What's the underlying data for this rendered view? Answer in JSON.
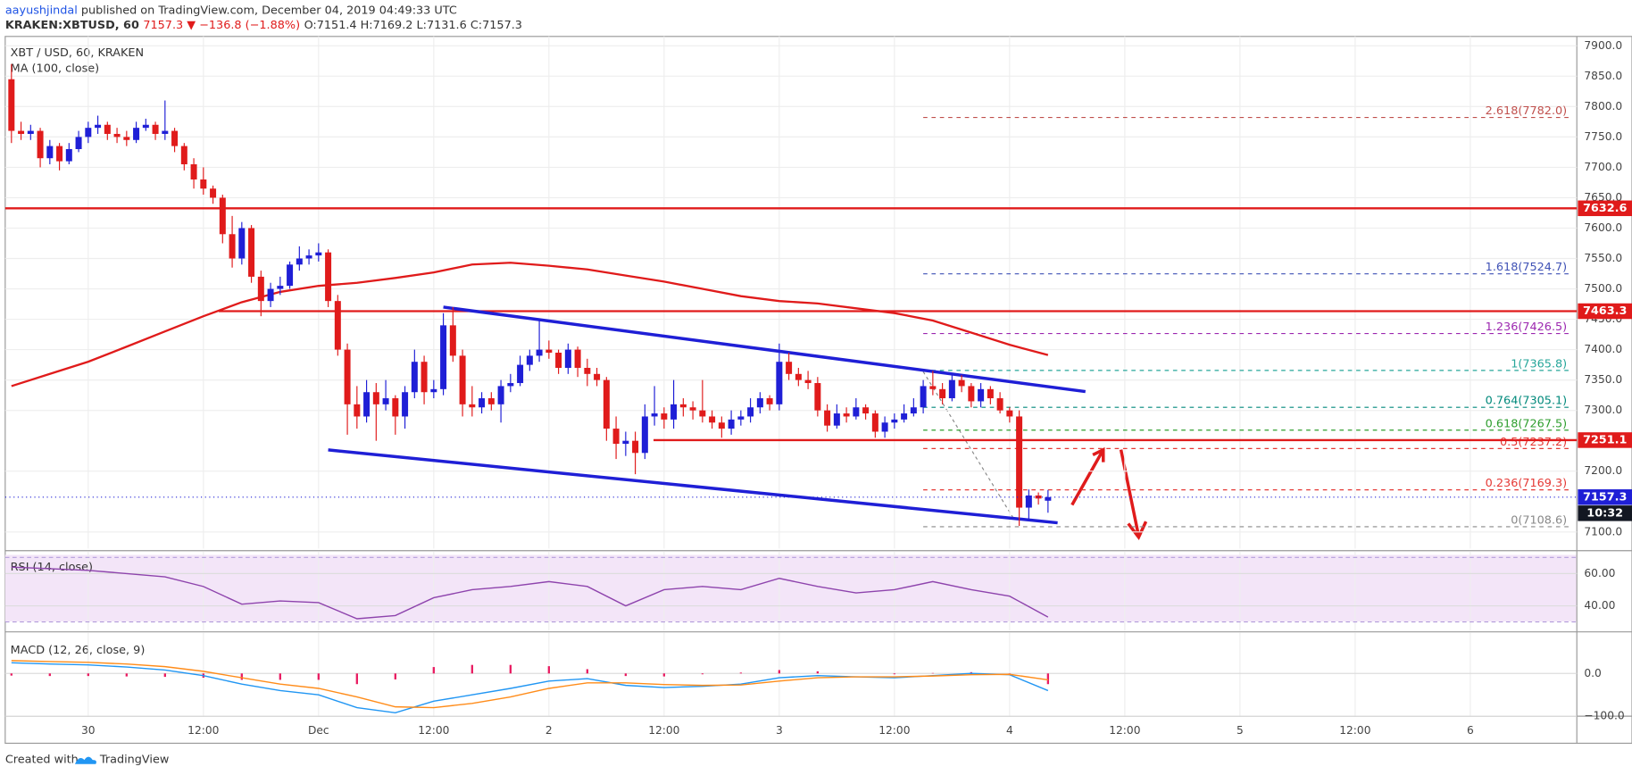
{
  "header": {
    "author": "aayushjindal",
    "published": "published on TradingView.com, December 04, 2019 04:49:33 UTC",
    "symbol": "KRAKEN:XBTUSD, 60",
    "change": "7157.3 ▼ −136.8 (−1.88%)",
    "ohlc_text": "O:7151.4 H:7169.2 L:7131.6 C:7157.3"
  },
  "footer": {
    "created": "Created with",
    "brand": "TradingView"
  },
  "chart_data": {
    "type": "candlestick",
    "title": "XBT / USD, 60, KRAKEN",
    "up_color": "#1f1fd6",
    "down_color": "#e01b1b",
    "xlim": [
      -0.65,
      163.1
    ],
    "xticks": [
      {
        "value": 8,
        "label": "30"
      },
      {
        "value": 20,
        "label": "12:00"
      },
      {
        "value": 32,
        "label": "Dec"
      },
      {
        "value": 44,
        "label": "12:00"
      },
      {
        "value": 56,
        "label": "2"
      },
      {
        "value": 68,
        "label": "12:00"
      },
      {
        "value": 80,
        "label": "3"
      },
      {
        "value": 92,
        "label": "12:00"
      },
      {
        "value": 104,
        "label": "4"
      },
      {
        "value": 116,
        "label": "12:00"
      },
      {
        "value": 128,
        "label": "5"
      },
      {
        "value": 140,
        "label": "12:00"
      },
      {
        "value": 152,
        "label": "6"
      }
    ],
    "ylim": [
      7072.6,
      7915.4
    ],
    "yticks": [
      {
        "value": 7900,
        "label": "7900.0"
      },
      {
        "value": 7850,
        "label": "7850.0"
      },
      {
        "value": 7800,
        "label": "7800.0"
      },
      {
        "value": 7750,
        "label": "7750.0"
      },
      {
        "value": 7700,
        "label": "7700.0"
      },
      {
        "value": 7650,
        "label": "7650.0"
      },
      {
        "value": 7600,
        "label": "7600.0"
      },
      {
        "value": 7550,
        "label": "7550.0"
      },
      {
        "value": 7500,
        "label": "7500.0"
      },
      {
        "value": 7450,
        "label": "7450.0"
      },
      {
        "value": 7400,
        "label": "7400.0"
      },
      {
        "value": 7350,
        "label": "7350.0"
      },
      {
        "value": 7300,
        "label": "7300.0"
      },
      {
        "value": 7200,
        "label": "7200.0"
      },
      {
        "value": 7100,
        "label": "7100.0"
      }
    ],
    "grid": true,
    "ohlc": [
      [
        7845,
        7870,
        7740,
        7760
      ],
      [
        7760,
        7775,
        7745,
        7755
      ],
      [
        7755,
        7770,
        7745,
        7760
      ],
      [
        7760,
        7765,
        7700,
        7715
      ],
      [
        7715,
        7745,
        7705,
        7735
      ],
      [
        7735,
        7740,
        7695,
        7710
      ],
      [
        7710,
        7740,
        7705,
        7730
      ],
      [
        7730,
        7760,
        7725,
        7750
      ],
      [
        7750,
        7775,
        7740,
        7765
      ],
      [
        7765,
        7785,
        7755,
        7770
      ],
      [
        7770,
        7775,
        7745,
        7755
      ],
      [
        7755,
        7765,
        7740,
        7750
      ],
      [
        7750,
        7760,
        7735,
        7745
      ],
      [
        7745,
        7775,
        7740,
        7765
      ],
      [
        7765,
        7780,
        7760,
        7770
      ],
      [
        7770,
        7775,
        7745,
        7755
      ],
      [
        7755,
        7810,
        7745,
        7760
      ],
      [
        7760,
        7765,
        7725,
        7735
      ],
      [
        7735,
        7740,
        7695,
        7705
      ],
      [
        7705,
        7715,
        7665,
        7680
      ],
      [
        7680,
        7700,
        7655,
        7665
      ],
      [
        7665,
        7670,
        7640,
        7650
      ],
      [
        7650,
        7655,
        7575,
        7590
      ],
      [
        7590,
        7620,
        7535,
        7550
      ],
      [
        7550,
        7610,
        7540,
        7600
      ],
      [
        7600,
        7605,
        7510,
        7520
      ],
      [
        7520,
        7530,
        7455,
        7480
      ],
      [
        7480,
        7510,
        7470,
        7500
      ],
      [
        7500,
        7520,
        7490,
        7505
      ],
      [
        7505,
        7545,
        7500,
        7540
      ],
      [
        7540,
        7570,
        7530,
        7550
      ],
      [
        7550,
        7565,
        7540,
        7555
      ],
      [
        7555,
        7575,
        7545,
        7560
      ],
      [
        7560,
        7565,
        7470,
        7480
      ],
      [
        7480,
        7490,
        7390,
        7400
      ],
      [
        7400,
        7410,
        7260,
        7310
      ],
      [
        7310,
        7340,
        7270,
        7290
      ],
      [
        7290,
        7350,
        7280,
        7330
      ],
      [
        7330,
        7345,
        7250,
        7310
      ],
      [
        7310,
        7350,
        7300,
        7320
      ],
      [
        7320,
        7325,
        7260,
        7290
      ],
      [
        7290,
        7340,
        7270,
        7330
      ],
      [
        7330,
        7400,
        7320,
        7380
      ],
      [
        7380,
        7390,
        7310,
        7330
      ],
      [
        7330,
        7350,
        7320,
        7335
      ],
      [
        7335,
        7460,
        7325,
        7440
      ],
      [
        7440,
        7470,
        7380,
        7390
      ],
      [
        7390,
        7400,
        7290,
        7310
      ],
      [
        7310,
        7340,
        7290,
        7305
      ],
      [
        7305,
        7330,
        7295,
        7320
      ],
      [
        7320,
        7330,
        7300,
        7310
      ],
      [
        7310,
        7350,
        7280,
        7340
      ],
      [
        7340,
        7360,
        7330,
        7345
      ],
      [
        7345,
        7390,
        7340,
        7375
      ],
      [
        7375,
        7400,
        7365,
        7390
      ],
      [
        7390,
        7450,
        7380,
        7400
      ],
      [
        7400,
        7415,
        7385,
        7395
      ],
      [
        7395,
        7400,
        7360,
        7370
      ],
      [
        7370,
        7410,
        7360,
        7400
      ],
      [
        7400,
        7405,
        7355,
        7370
      ],
      [
        7370,
        7385,
        7340,
        7360
      ],
      [
        7360,
        7370,
        7340,
        7350
      ],
      [
        7350,
        7355,
        7250,
        7270
      ],
      [
        7270,
        7290,
        7220,
        7245
      ],
      [
        7245,
        7265,
        7225,
        7250
      ],
      [
        7250,
        7265,
        7195,
        7230
      ],
      [
        7230,
        7310,
        7220,
        7290
      ],
      [
        7290,
        7340,
        7275,
        7295
      ],
      [
        7295,
        7305,
        7270,
        7285
      ],
      [
        7285,
        7350,
        7270,
        7310
      ],
      [
        7310,
        7320,
        7290,
        7305
      ],
      [
        7305,
        7315,
        7285,
        7300
      ],
      [
        7300,
        7350,
        7280,
        7290
      ],
      [
        7290,
        7300,
        7270,
        7280
      ],
      [
        7280,
        7290,
        7255,
        7270
      ],
      [
        7270,
        7300,
        7260,
        7285
      ],
      [
        7285,
        7300,
        7275,
        7290
      ],
      [
        7290,
        7320,
        7280,
        7305
      ],
      [
        7305,
        7330,
        7295,
        7320
      ],
      [
        7320,
        7325,
        7300,
        7310
      ],
      [
        7310,
        7410,
        7300,
        7380
      ],
      [
        7380,
        7395,
        7350,
        7360
      ],
      [
        7360,
        7370,
        7340,
        7350
      ],
      [
        7350,
        7365,
        7335,
        7345
      ],
      [
        7345,
        7355,
        7290,
        7300
      ],
      [
        7300,
        7310,
        7265,
        7275
      ],
      [
        7275,
        7310,
        7270,
        7295
      ],
      [
        7295,
        7305,
        7280,
        7290
      ],
      [
        7290,
        7320,
        7285,
        7305
      ],
      [
        7305,
        7310,
        7285,
        7295
      ],
      [
        7295,
        7300,
        7255,
        7265
      ],
      [
        7265,
        7290,
        7255,
        7280
      ],
      [
        7280,
        7295,
        7270,
        7285
      ],
      [
        7285,
        7310,
        7280,
        7295
      ],
      [
        7295,
        7320,
        7290,
        7305
      ],
      [
        7305,
        7350,
        7295,
        7340
      ],
      [
        7340,
        7365,
        7325,
        7335
      ],
      [
        7335,
        7345,
        7310,
        7320
      ],
      [
        7320,
        7360,
        7315,
        7350
      ],
      [
        7350,
        7358,
        7330,
        7340
      ],
      [
        7340,
        7345,
        7305,
        7315
      ],
      [
        7315,
        7345,
        7305,
        7335
      ],
      [
        7335,
        7340,
        7310,
        7320
      ],
      [
        7320,
        7330,
        7295,
        7300
      ],
      [
        7300,
        7305,
        7280,
        7290
      ],
      [
        7290,
        7300,
        7110,
        7140
      ],
      [
        7140,
        7170,
        7120,
        7160
      ],
      [
        7160,
        7165,
        7145,
        7155
      ],
      [
        7151.4,
        7169.2,
        7131.6,
        7157.3
      ]
    ],
    "ma": {
      "name": "MA (100, close)",
      "color": "#e01b1b",
      "x": [
        0,
        4,
        8,
        12,
        16,
        20,
        24,
        28,
        32,
        36,
        40,
        44,
        48,
        52,
        56,
        60,
        64,
        68,
        72,
        76,
        80,
        84,
        88,
        92,
        96,
        100,
        104,
        108
      ],
      "values": [
        7340,
        7360,
        7380,
        7405,
        7430,
        7455,
        7478,
        7495,
        7505,
        7510,
        7518,
        7527,
        7540,
        7543,
        7538,
        7532,
        7522,
        7512,
        7500,
        7488,
        7480,
        7476,
        7468,
        7460,
        7448,
        7428,
        7408,
        7391
      ]
    },
    "levels": [
      {
        "value": 7632.6,
        "color": "#e01b1b"
      },
      {
        "value": 7463.3,
        "start": 21.6,
        "color": "#e01b1b"
      },
      {
        "value": 7251.1,
        "start": 66.9,
        "color": "#e01b1b"
      }
    ],
    "last_price": {
      "value": 7157.3,
      "countdown": "10:32",
      "color": "#1f1fd6"
    },
    "trendlines": [
      {
        "x": [
          45.0,
          111.9
        ],
        "values": [
          7470,
          7331
        ],
        "color": "#1f1fd6"
      },
      {
        "x": [
          33.0,
          109.0
        ],
        "values": [
          7235,
          7115
        ],
        "color": "#1f1fd6"
      }
    ],
    "fib_x": [
      95,
      162.4
    ],
    "fib": [
      {
        "label": "2.618(7782.0)",
        "value": 7782.0,
        "color": "#c0504d"
      },
      {
        "label": "1.618(7524.7)",
        "value": 7524.7,
        "color": "#3f51b5"
      },
      {
        "label": "1.236(7426.5)",
        "value": 7426.5,
        "color": "#9c27b0"
      },
      {
        "label": "1(7365.8)",
        "value": 7365.8,
        "color": "#26a69a"
      },
      {
        "label": "0.764(7305.1)",
        "value": 7305.1,
        "color": "#00897b"
      },
      {
        "label": "0.618(7267.5)",
        "value": 7267.5,
        "color": "#2e9e2e"
      },
      {
        "label": "0.5(7237.2)",
        "value": 7237.2,
        "color": "#e53935"
      },
      {
        "label": "0.236(7169.3)",
        "value": 7169.3,
        "color": "#e53935"
      },
      {
        "label": "0(7108.6)",
        "value": 7108.6,
        "color": "#888888"
      }
    ],
    "rsi": {
      "name": "RSI (14, close)",
      "color": "#8e44ad",
      "ylim": [
        25.8,
        71.6
      ],
      "yticks": [
        {
          "value": 60,
          "label": "60.00"
        },
        {
          "value": 40,
          "label": "40.00"
        }
      ],
      "bands": [
        30,
        70
      ],
      "x": [
        0,
        4,
        8,
        12,
        16,
        20,
        24,
        28,
        32,
        36,
        40,
        44,
        48,
        52,
        56,
        60,
        64,
        68,
        72,
        76,
        80,
        84,
        88,
        92,
        96,
        100,
        104,
        108
      ],
      "values": [
        64,
        63,
        62,
        60,
        58,
        52,
        41,
        43,
        42,
        32,
        34,
        45,
        50,
        52,
        55,
        52,
        40,
        50,
        52,
        50,
        57,
        52,
        48,
        50,
        55,
        50,
        46,
        33
      ]
    },
    "macd": {
      "name": "MACD (12, 26, close, 9)",
      "ylim": [
        -100,
        90
      ],
      "yticks": [
        {
          "value": 0,
          "label": "0.0"
        },
        {
          "value": -100,
          "label": "−100.0"
        }
      ],
      "x": [
        0,
        4,
        8,
        12,
        16,
        20,
        24,
        28,
        32,
        36,
        40,
        44,
        48,
        52,
        56,
        60,
        64,
        68,
        72,
        76,
        80,
        84,
        88,
        92,
        96,
        100,
        104,
        108
      ],
      "macd_color": "#2196f3",
      "signal_color": "#ff8c1a",
      "hist_color": "#e91e63",
      "macd": [
        25,
        22,
        20,
        15,
        8,
        -5,
        -25,
        -40,
        -50,
        -80,
        -92,
        -65,
        -50,
        -35,
        -18,
        -12,
        -28,
        -33,
        -30,
        -25,
        -10,
        -5,
        -8,
        -10,
        -5,
        0,
        -3,
        -40
      ],
      "signal": [
        30,
        28,
        26,
        22,
        16,
        5,
        -10,
        -25,
        -35,
        -55,
        -78,
        -80,
        -70,
        -55,
        -35,
        -22,
        -22,
        -26,
        -28,
        -27,
        -18,
        -10,
        -8,
        -8,
        -6,
        -3,
        -2,
        -15
      ],
      "histogram": [
        -5,
        -6,
        -6,
        -7,
        -8,
        -10,
        -15,
        -15,
        -15,
        -25,
        -14,
        15,
        20,
        20,
        17,
        10,
        -6,
        -7,
        -2,
        2,
        8,
        5,
        0,
        -2,
        1,
        3,
        -1,
        -25
      ]
    }
  }
}
